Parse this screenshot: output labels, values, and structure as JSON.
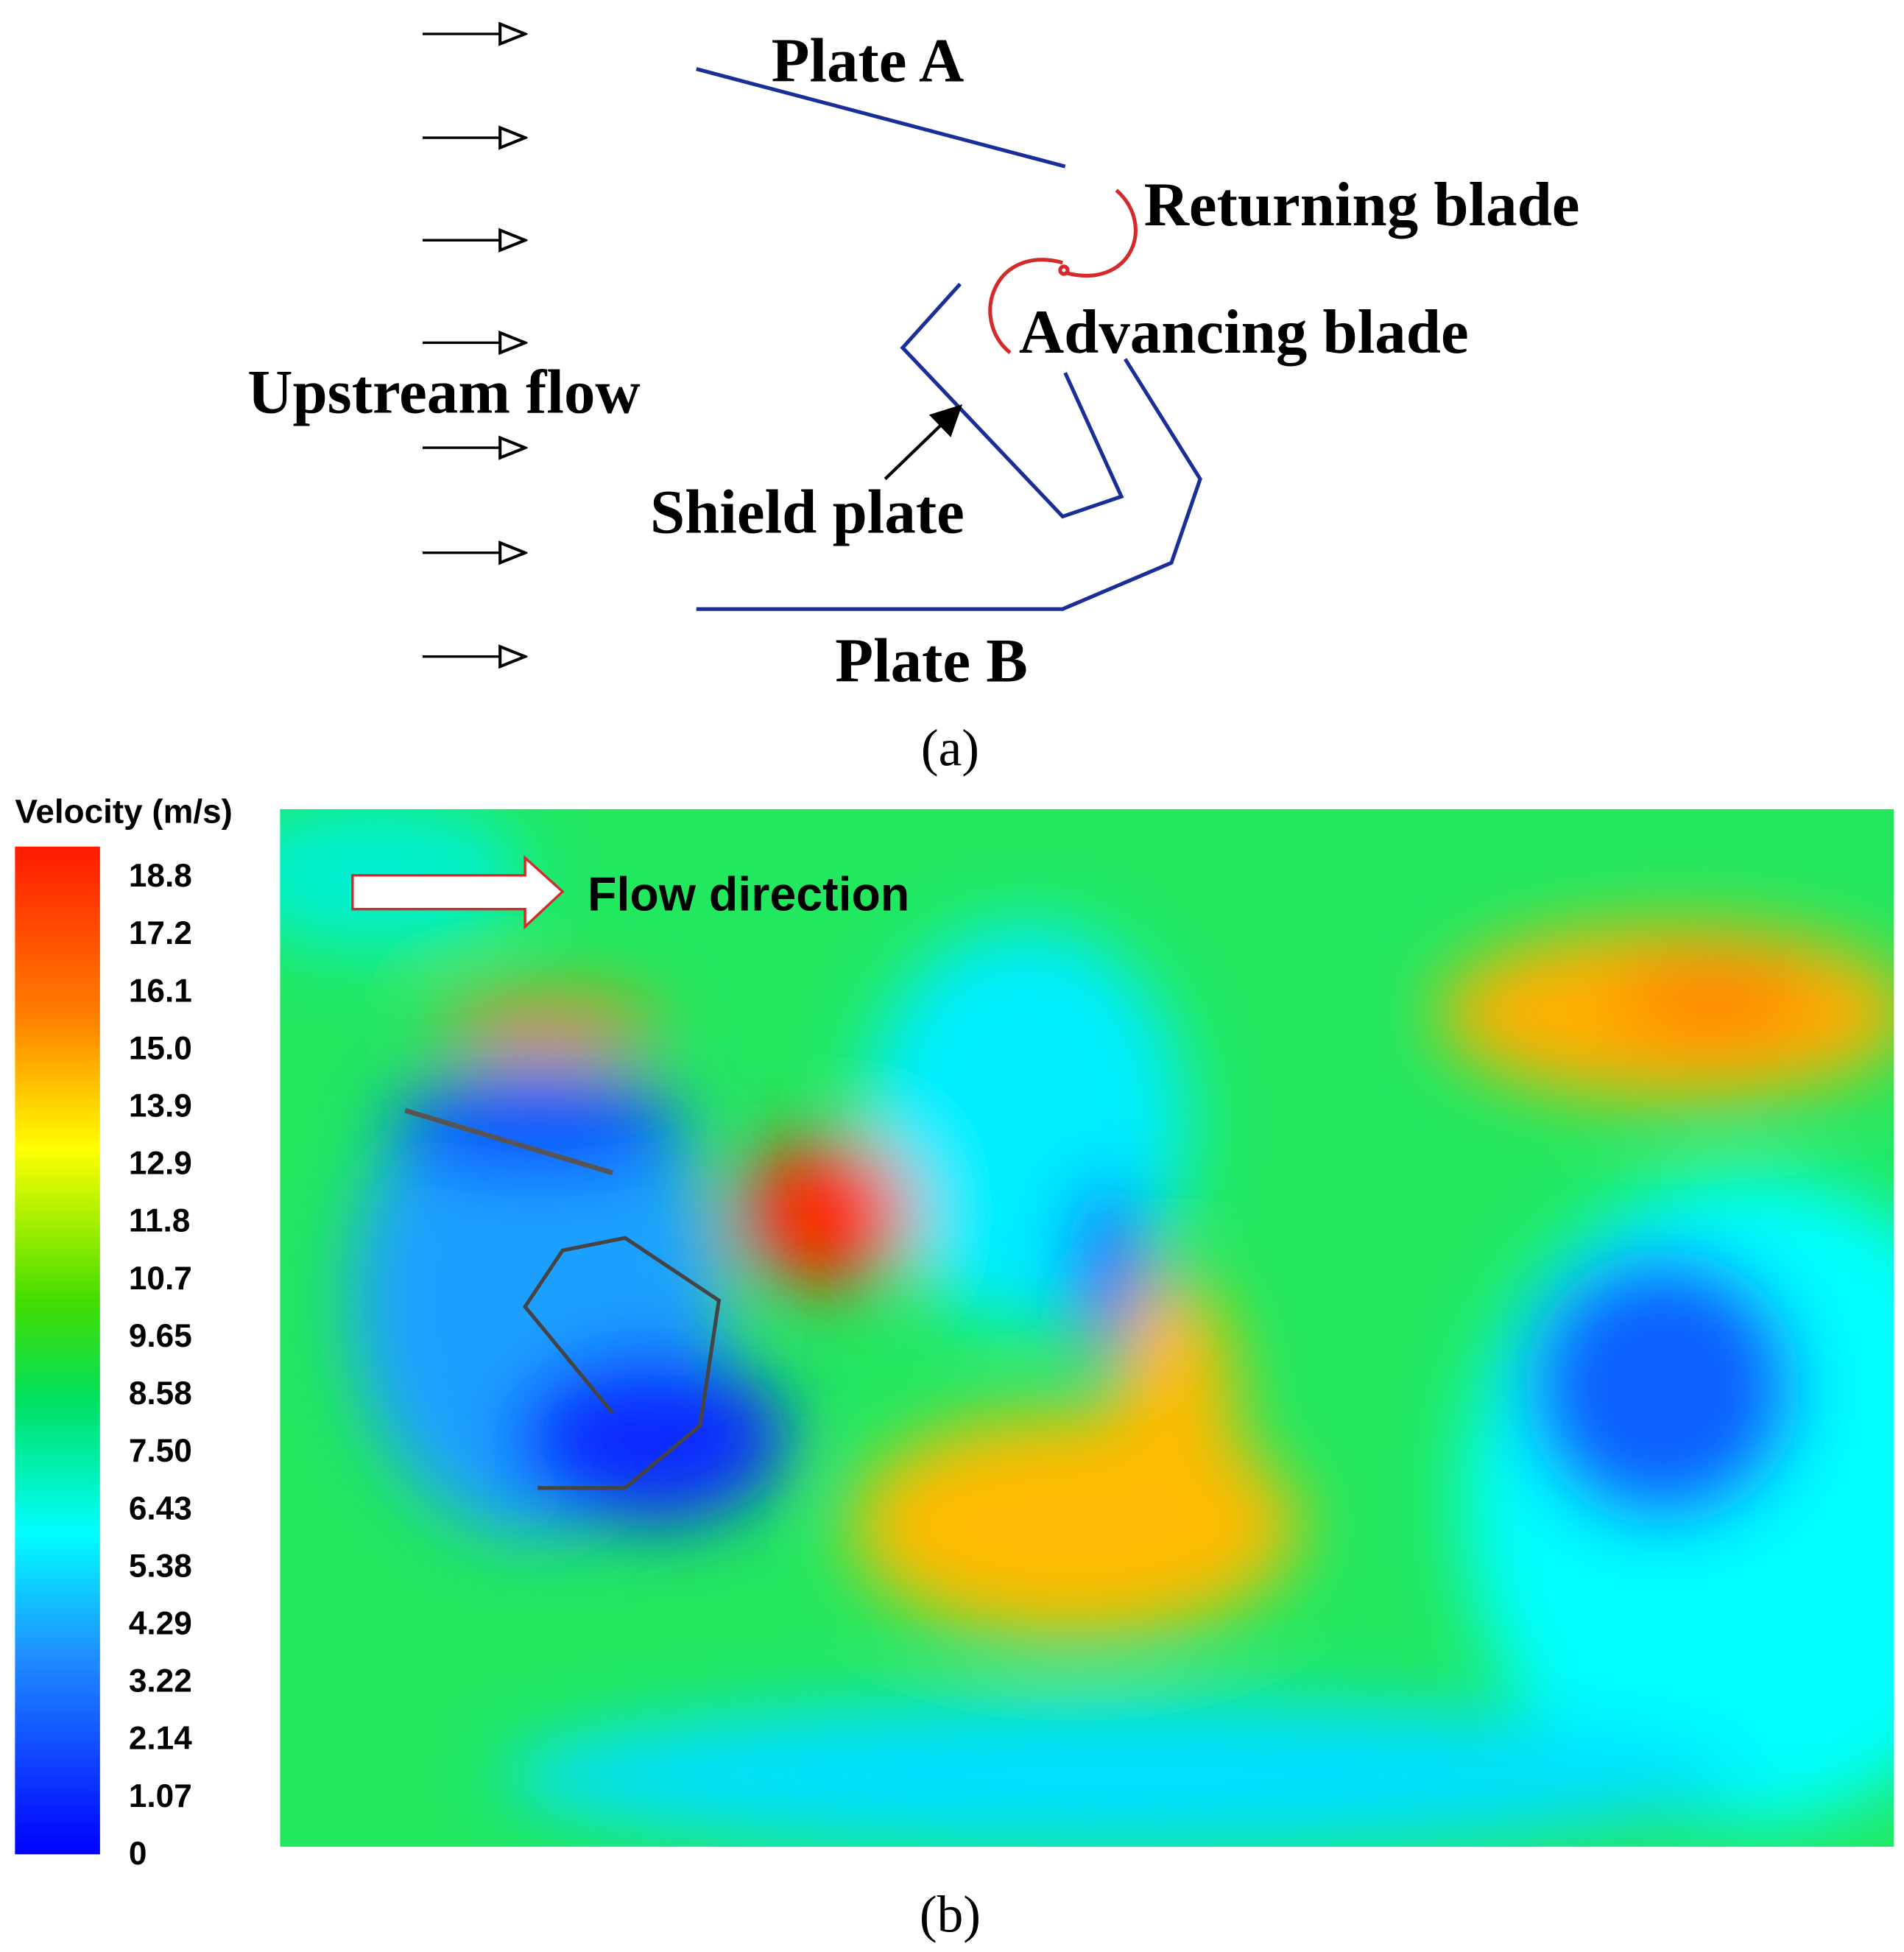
{
  "diagram": {
    "labels": {
      "plate_a": "Plate A",
      "returning_blade": "Returning blade",
      "advancing_blade": "Advancing blade",
      "upstream_flow": "Upstream flow",
      "shield_plate": "Shield plate",
      "plate_b": "Plate B"
    },
    "caption": "(a)"
  },
  "contour": {
    "legend_title": "Velocity (m/s)",
    "legend_ticks": [
      "18.8",
      "17.2",
      "16.1",
      "15.0",
      "13.9",
      "12.9",
      "11.8",
      "10.7",
      "9.65",
      "8.58",
      "7.50",
      "6.43",
      "5.38",
      "4.29",
      "3.22",
      "2.14",
      "1.07",
      "0"
    ],
    "flow_label": "Flow direction",
    "caption": "(b)"
  }
}
